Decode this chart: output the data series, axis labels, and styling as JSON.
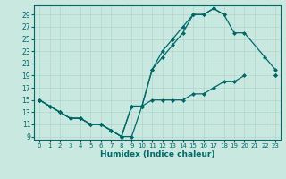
{
  "xlabel": "Humidex (Indice chaleur)",
  "bg_color": "#c8e8e0",
  "grid_color": "#b0d4cc",
  "line_color": "#006868",
  "xlim": [
    -0.5,
    23.5
  ],
  "ylim": [
    8.5,
    30.5
  ],
  "yticks": [
    9,
    11,
    13,
    15,
    17,
    19,
    21,
    23,
    25,
    27,
    29
  ],
  "xticks": [
    0,
    1,
    2,
    3,
    4,
    5,
    6,
    7,
    8,
    9,
    10,
    11,
    12,
    13,
    14,
    15,
    16,
    17,
    18,
    19,
    20,
    21,
    22,
    23
  ],
  "line1_x": [
    0,
    1,
    2,
    3,
    4,
    5,
    6,
    7,
    8,
    9,
    10,
    11,
    12,
    13,
    14,
    15,
    16,
    17,
    18,
    19,
    20,
    21,
    22,
    23
  ],
  "line1_y": [
    15,
    14,
    13,
    12,
    12,
    11,
    11,
    10,
    9,
    14,
    14,
    20,
    22,
    24,
    26,
    29,
    29,
    30,
    29,
    null,
    null,
    null,
    null,
    19
  ],
  "line2_x": [
    0,
    2,
    3,
    4,
    5,
    6,
    7,
    8,
    9,
    10,
    11,
    12,
    13,
    14,
    15,
    16,
    17,
    18,
    19,
    20,
    22,
    23
  ],
  "line2_y": [
    15,
    13,
    12,
    12,
    11,
    11,
    10,
    9,
    9,
    14,
    20,
    23,
    25,
    27,
    29,
    29,
    30,
    29,
    26,
    26,
    22,
    20
  ],
  "line3_x": [
    0,
    1,
    2,
    3,
    4,
    5,
    6,
    7,
    8,
    9,
    10,
    11,
    12,
    13,
    14,
    15,
    16,
    17,
    18,
    19,
    20,
    22,
    23
  ],
  "line3_y": [
    15,
    14,
    13,
    12,
    12,
    11,
    11,
    10,
    9,
    14,
    14,
    15,
    15,
    15,
    15,
    16,
    16,
    17,
    18,
    18,
    19,
    null,
    19
  ]
}
